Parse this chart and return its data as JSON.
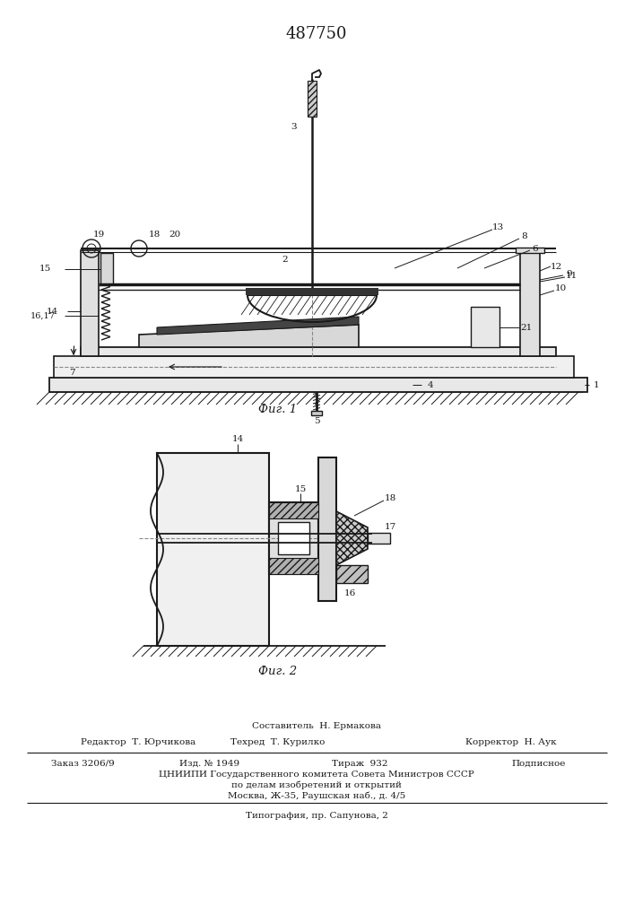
{
  "title": "487750",
  "fig1_caption": "Фиг. 1",
  "fig2_caption": "Фиг. 2",
  "footer_line1": "Составитель  Н. Ермакова",
  "footer_line2_left": "Редактор  Т. Юрчикова",
  "footer_line2_mid": "Техред  Т. Курилко",
  "footer_line2_right": "Корректор  Н. Аук",
  "footer_line3_left": "Заказ 3206/9",
  "footer_line3_mid1": "Изд. № 1949",
  "footer_line3_mid2": "Тираж  932",
  "footer_line3_right": "Подписное",
  "footer_line4": "ЦНИИПИ Государственного комитета Совета Министров СССР",
  "footer_line5": "по делам изобретений и открытий",
  "footer_line6": "Москва, Ж-35, Раушская наб., д. 4/5",
  "footer_line7": "Типография, пр. Сапунова, 2",
  "bg_color": "#ffffff",
  "line_color": "#1a1a1a"
}
